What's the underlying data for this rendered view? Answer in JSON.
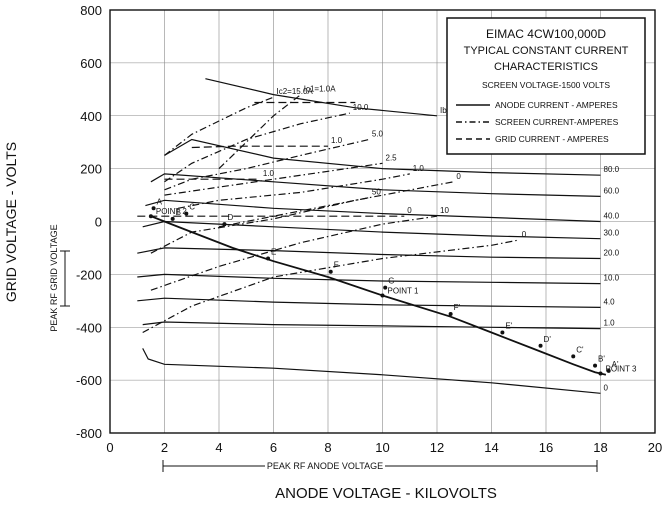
{
  "chart_data": {
    "type": "line",
    "title": "EIMAC 4CW100,000D",
    "subtitle": [
      "TYPICAL CONSTANT CURRENT",
      "CHARACTERISTICS"
    ],
    "note": "SCREEN VOLTAGE-1500 VOLTS",
    "xlabel": "ANODE VOLTAGE - KILOVOLTS",
    "ylabel": "GRID VOLTAGE - VOLTS",
    "xlim": [
      0,
      20
    ],
    "ylim": [
      -800,
      800
    ],
    "xticks": [
      0,
      2,
      4,
      6,
      8,
      10,
      12,
      14,
      16,
      18,
      20
    ],
    "yticks": [
      -800,
      -600,
      -400,
      -200,
      0,
      200,
      400,
      600,
      800
    ],
    "grid": true,
    "legend": {
      "position": "top-right",
      "entries": [
        {
          "label": "ANODE CURRENT - AMPERES",
          "style": "solid"
        },
        {
          "label": "SCREEN CURRENT-AMPERES",
          "style": "dashdot"
        },
        {
          "label": "GRID CURRENT - AMPERES",
          "style": "dashed"
        }
      ]
    },
    "annotations": {
      "peak_rf_grid_voltage": "PEAK RF GRID VOLTAGE",
      "peak_rf_anode_voltage": "PEAK RF ANODE VOLTAGE",
      "point1": "POINT 1",
      "point2": "POINT 2",
      "point3": "POINT 3"
    },
    "series": [
      {
        "name": "Ib=100.0A",
        "label": "Ib=100.0A",
        "style": "solid",
        "x": [
          3.5,
          6,
          9,
          12
        ],
        "y": [
          540,
          480,
          430,
          400
        ]
      },
      {
        "name": "80.0",
        "label": "80.0",
        "style": "solid",
        "x": [
          2,
          3,
          6,
          10,
          14,
          18
        ],
        "y": [
          250,
          310,
          240,
          200,
          185,
          175
        ]
      },
      {
        "name": "60.0",
        "label": "60.0",
        "style": "solid",
        "x": [
          1.5,
          2,
          6,
          10,
          14,
          18
        ],
        "y": [
          150,
          180,
          150,
          120,
          105,
          95
        ]
      },
      {
        "name": "40.0",
        "label": "40.0",
        "style": "solid",
        "x": [
          1.3,
          2,
          6,
          10,
          14,
          18
        ],
        "y": [
          60,
          80,
          50,
          30,
          15,
          0
        ]
      },
      {
        "name": "30.0",
        "label": "30.0",
        "style": "solid",
        "x": [
          1.2,
          2,
          6,
          10,
          14,
          18
        ],
        "y": [
          -20,
          0,
          -20,
          -40,
          -55,
          -65
        ]
      },
      {
        "name": "20.0",
        "label": "20.0",
        "style": "solid",
        "x": [
          1,
          2,
          6,
          10,
          14,
          18
        ],
        "y": [
          -120,
          -100,
          -110,
          -125,
          -135,
          -140
        ]
      },
      {
        "name": "10.0",
        "label": "10.0",
        "style": "solid",
        "x": [
          1,
          2,
          6,
          10,
          14,
          18
        ],
        "y": [
          -210,
          -200,
          -215,
          -225,
          -230,
          -235
        ]
      },
      {
        "name": "4.0",
        "label": "4.0",
        "style": "solid",
        "x": [
          1,
          2,
          6,
          10,
          14,
          18
        ],
        "y": [
          -300,
          -290,
          -305,
          -315,
          -320,
          -325
        ]
      },
      {
        "name": "1.0",
        "label": "1.0",
        "style": "solid",
        "x": [
          1.2,
          2,
          6,
          10,
          14,
          18
        ],
        "y": [
          -390,
          -380,
          -390,
          -395,
          -400,
          -405
        ]
      },
      {
        "name": "0",
        "label": "0",
        "style": "solid",
        "x": [
          1.2,
          1.4,
          2,
          6,
          10,
          14,
          18
        ],
        "y": [
          -480,
          -520,
          -540,
          -555,
          -580,
          -610,
          -650
        ]
      },
      {
        "name": "Ic2=15.0A",
        "label": "Ic2=15.0A",
        "style": "dashdot",
        "x": [
          2,
          3,
          4,
          5,
          6
        ],
        "y": [
          250,
          330,
          380,
          430,
          470
        ]
      },
      {
        "name": "Ic1=1.0A",
        "label": "Ic1=1.0A",
        "style": "dashdot",
        "x": [
          4,
          5,
          6,
          7
        ],
        "y": [
          200,
          300,
          400,
          480
        ]
      },
      {
        "name": "Ic2=10.0",
        "label": "10.0",
        "style": "dashdot",
        "x": [
          2,
          3,
          5,
          7,
          8.8
        ],
        "y": [
          150,
          220,
          310,
          370,
          410
        ]
      },
      {
        "name": "Ic2=5.0",
        "label": "5.0",
        "style": "dashdot",
        "x": [
          2,
          3,
          5,
          7,
          9.5
        ],
        "y": [
          120,
          160,
          200,
          250,
          310
        ]
      },
      {
        "name": "Ic2=2.5",
        "label": "2.5",
        "style": "dashdot",
        "x": [
          2,
          4,
          6,
          8,
          10
        ],
        "y": [
          100,
          130,
          160,
          190,
          220
        ]
      },
      {
        "name": "Ic2=1.0",
        "label": "1.0",
        "style": "dashdot",
        "x": [
          2.5,
          4,
          7,
          10,
          11
        ],
        "y": [
          50,
          80,
          110,
          160,
          180
        ]
      },
      {
        "name": "Ic2=0",
        "label": "0",
        "style": "dashdot",
        "x": [
          1.5,
          3,
          6,
          9,
          12.6
        ],
        "y": [
          -120,
          -40,
          10,
          80,
          150
        ]
      },
      {
        "name": "Ic1=50",
        "label": "50",
        "style": "dashdot",
        "x": [
          4,
          6,
          8,
          9.5
        ],
        "y": [
          -20,
          20,
          60,
          90
        ]
      },
      {
        "name": "Ic1=10",
        "label": "10",
        "style": "dashdot",
        "x": [
          1.5,
          4,
          7,
          10,
          12
        ],
        "y": [
          -260,
          -170,
          -80,
          -10,
          20
        ]
      },
      {
        "name": "Ic1=0",
        "label": "0",
        "style": "dashdot",
        "x": [
          1.2,
          3,
          6,
          10,
          14,
          15
        ],
        "y": [
          -420,
          -320,
          -210,
          -140,
          -90,
          -70
        ]
      },
      {
        "name": "Ig=1.0 (dashed)",
        "label": "1.0",
        "style": "dashed",
        "x": [
          3,
          4.5,
          6,
          8
        ],
        "y": [
          280,
          285,
          285,
          285
        ]
      },
      {
        "name": "Ig=1.0 low",
        "label": "1.0",
        "style": "dashed",
        "x": [
          2,
          4,
          5,
          5.5
        ],
        "y": [
          160,
          160,
          160,
          160
        ]
      },
      {
        "name": "Ig=0",
        "label": "0",
        "style": "dashed",
        "x": [
          1,
          3,
          7,
          10.8
        ],
        "y": [
          20,
          20,
          20,
          20
        ]
      },
      {
        "name": "Ig top",
        "label": "",
        "style": "dashed",
        "x": [
          5.3,
          9
        ],
        "y": [
          450,
          450
        ]
      },
      {
        "name": "Load line",
        "label": "",
        "style": "solid",
        "x": [
          1.5,
          2,
          3,
          4.5,
          6,
          8,
          10,
          12.5,
          14,
          15.5,
          17,
          17.8,
          18.2
        ],
        "y": [
          20,
          0,
          -40,
          -100,
          -150,
          -210,
          -280,
          -360,
          -420,
          -480,
          -540,
          -570,
          -580
        ]
      }
    ],
    "points": [
      {
        "label": "POINT 2",
        "x": 1.5,
        "y": 20
      },
      {
        "label": "POINT 1",
        "x": 10,
        "y": -280
      },
      {
        "label": "POINT 3",
        "x": 18,
        "y": -575
      },
      {
        "label": "A",
        "x": 1.6,
        "y": 50
      },
      {
        "label": "B",
        "x": 2.3,
        "y": 10
      },
      {
        "label": "C",
        "x": 2.8,
        "y": 30
      },
      {
        "label": "D",
        "x": 4.2,
        "y": -10
      },
      {
        "label": "E",
        "x": 5.8,
        "y": -140
      },
      {
        "label": "F",
        "x": 8.1,
        "y": -190
      },
      {
        "label": "G",
        "x": 10.1,
        "y": -250
      },
      {
        "label": "F'",
        "x": 12.5,
        "y": -350
      },
      {
        "label": "E'",
        "x": 14.4,
        "y": -420
      },
      {
        "label": "D'",
        "x": 15.8,
        "y": -470
      },
      {
        "label": "C'",
        "x": 17.0,
        "y": -510
      },
      {
        "label": "B'",
        "x": 17.8,
        "y": -545
      },
      {
        "label": "A'",
        "x": 18.3,
        "y": -565
      }
    ]
  }
}
